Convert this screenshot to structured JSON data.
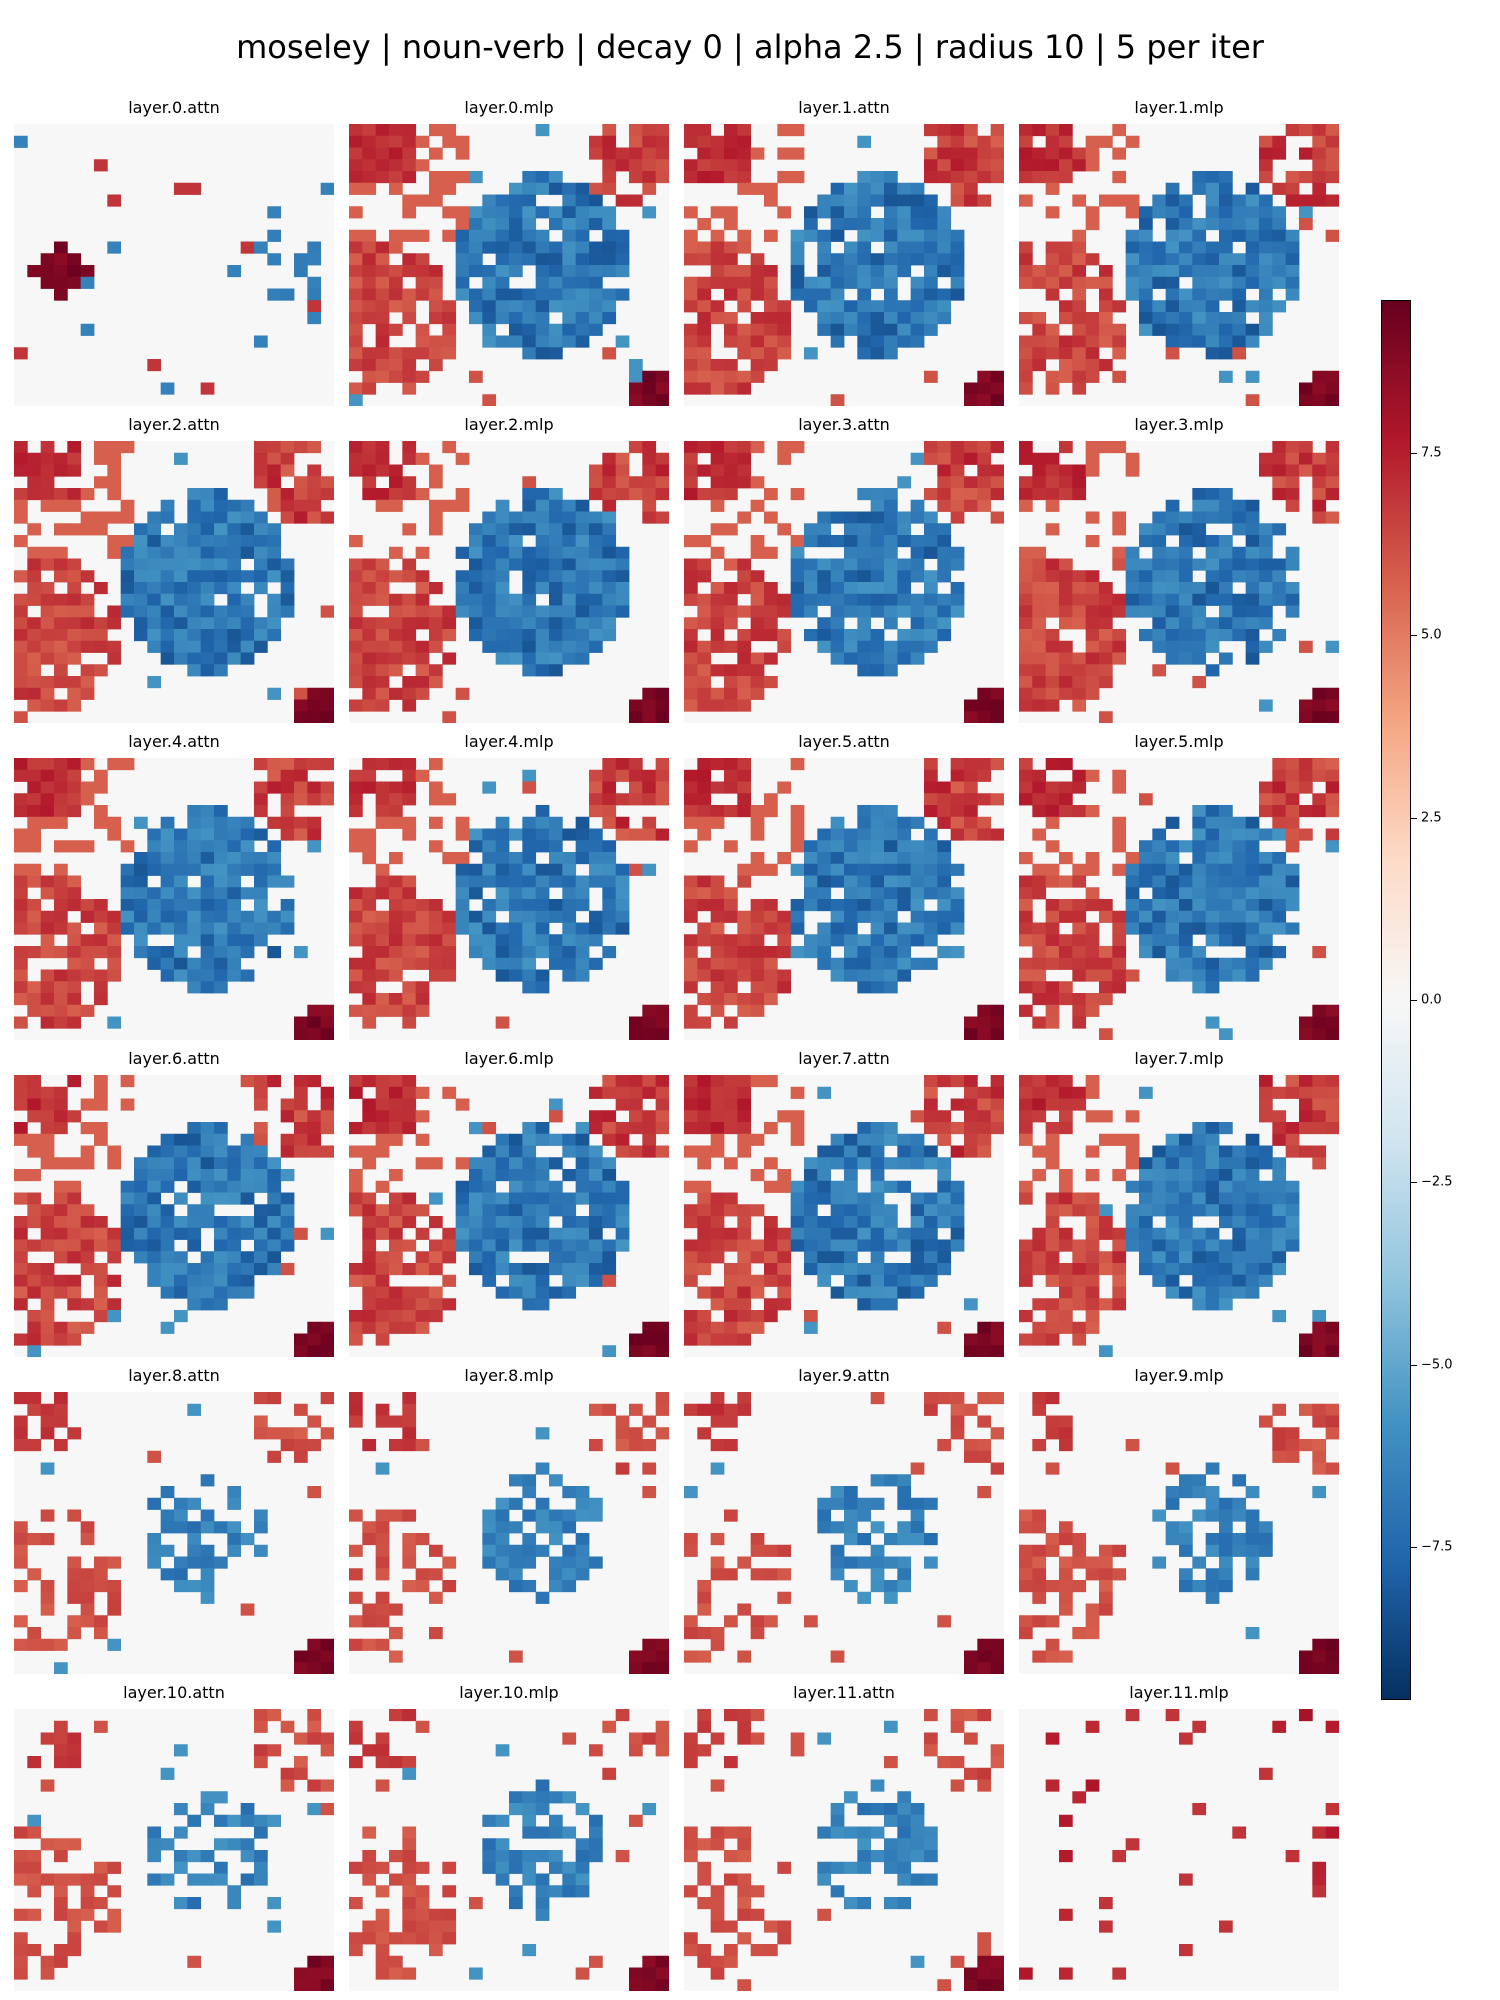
{
  "figure": {
    "title": "moseley | noun-verb | decay 0 | alpha 2.5 | radius 10 | 5 per iter"
  },
  "chart_data": {
    "type": "heatmap",
    "grid_size": [
      24,
      24
    ],
    "panels": [
      "layer.0.attn",
      "layer.0.mlp",
      "layer.1.attn",
      "layer.1.mlp",
      "layer.2.attn",
      "layer.2.mlp",
      "layer.3.attn",
      "layer.3.mlp",
      "layer.4.attn",
      "layer.4.mlp",
      "layer.5.attn",
      "layer.5.mlp",
      "layer.6.attn",
      "layer.6.mlp",
      "layer.7.attn",
      "layer.7.mlp",
      "layer.8.attn",
      "layer.8.mlp",
      "layer.9.attn",
      "layer.9.mlp",
      "layer.10.attn",
      "layer.10.mlp",
      "layer.11.attn",
      "layer.11.mlp"
    ],
    "colormap": "RdBu_r",
    "colorbar": {
      "range": [
        -9.6,
        9.6
      ],
      "ticks": [
        7.5,
        5.0,
        2.5,
        0.0,
        -2.5,
        -5.0,
        -7.5
      ],
      "tick_labels": [
        "7.5",
        "5.0",
        "2.5",
        "0.0",
        "−2.5",
        "−5.0",
        "−7.5"
      ]
    },
    "colors": {
      "low": "#053061",
      "mid": "#f7f7f7",
      "high": "#67001f"
    },
    "grid": false,
    "legend": "right"
  }
}
